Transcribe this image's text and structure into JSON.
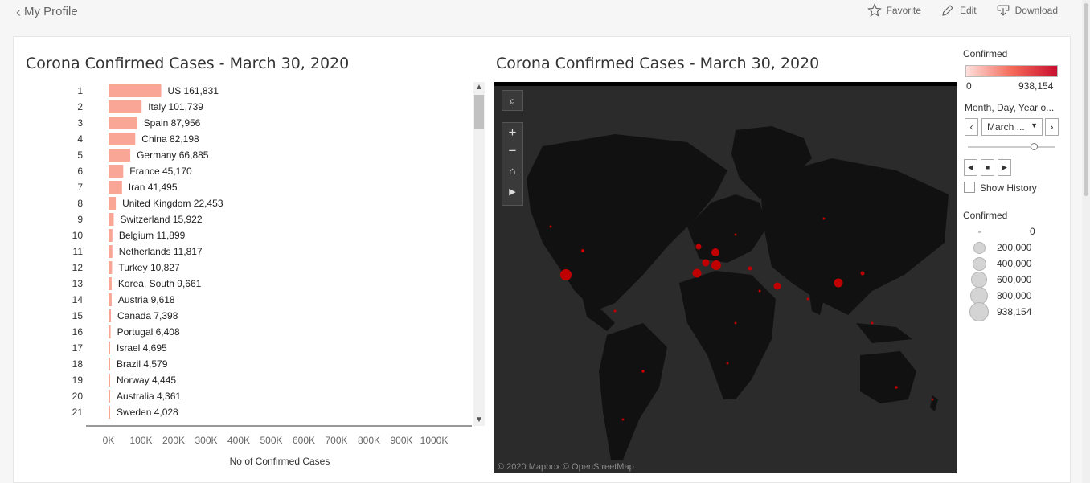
{
  "topbar": {
    "back_label": "My Profile",
    "favorite_label": "Favorite",
    "edit_label": "Edit",
    "download_label": "Download"
  },
  "left_title": "Corona Confirmed Cases - March 30, 2020",
  "map_title": "Corona Confirmed Cases - March 30, 2020",
  "chart_data": {
    "type": "bar",
    "orientation": "horizontal",
    "xlabel": "No of Confirmed Cases",
    "xlim": [
      0,
      1000000
    ],
    "xticks": [
      "0K",
      "100K",
      "200K",
      "300K",
      "400K",
      "500K",
      "600K",
      "700K",
      "800K",
      "900K",
      "1000K"
    ],
    "bar_color": "#f9a697",
    "rows": [
      {
        "rank": "1",
        "country": "US",
        "value": 161831,
        "value_label": "161,831"
      },
      {
        "rank": "2",
        "country": "Italy",
        "value": 101739,
        "value_label": "101,739"
      },
      {
        "rank": "3",
        "country": "Spain",
        "value": 87956,
        "value_label": "87,956"
      },
      {
        "rank": "4",
        "country": "China",
        "value": 82198,
        "value_label": "82,198"
      },
      {
        "rank": "5",
        "country": "Germany",
        "value": 66885,
        "value_label": "66,885"
      },
      {
        "rank": "6",
        "country": "France",
        "value": 45170,
        "value_label": "45,170"
      },
      {
        "rank": "7",
        "country": "Iran",
        "value": 41495,
        "value_label": "41,495"
      },
      {
        "rank": "8",
        "country": "United Kingdom",
        "value": 22453,
        "value_label": "22,453"
      },
      {
        "rank": "9",
        "country": "Switzerland",
        "value": 15922,
        "value_label": "15,922"
      },
      {
        "rank": "10",
        "country": "Belgium",
        "value": 11899,
        "value_label": "11,899"
      },
      {
        "rank": "11",
        "country": "Netherlands",
        "value": 11817,
        "value_label": "11,817"
      },
      {
        "rank": "12",
        "country": "Turkey",
        "value": 10827,
        "value_label": "10,827"
      },
      {
        "rank": "13",
        "country": "Korea, South",
        "value": 9661,
        "value_label": "9,661"
      },
      {
        "rank": "14",
        "country": "Austria",
        "value": 9618,
        "value_label": "9,618"
      },
      {
        "rank": "15",
        "country": "Canada",
        "value": 7398,
        "value_label": "7,398"
      },
      {
        "rank": "16",
        "country": "Portugal",
        "value": 6408,
        "value_label": "6,408"
      },
      {
        "rank": "17",
        "country": "Israel",
        "value": 4695,
        "value_label": "4,695"
      },
      {
        "rank": "18",
        "country": "Brazil",
        "value": 4579,
        "value_label": "4,579"
      },
      {
        "rank": "19",
        "country": "Norway",
        "value": 4445,
        "value_label": "4,445"
      },
      {
        "rank": "20",
        "country": "Australia",
        "value": 4361,
        "value_label": "4,361"
      },
      {
        "rank": "21",
        "country": "Sweden",
        "value": 4028,
        "value_label": "4,028"
      }
    ]
  },
  "map": {
    "credit": "© 2020 Mapbox  © OpenStreetMap",
    "background": "#2b2b2b",
    "land_color": "#111111",
    "marker_color": "#c00000"
  },
  "legend": {
    "color_title": "Confirmed",
    "color_min": "0",
    "color_max": "938,154",
    "date_filter_title": "Month, Day, Year o...",
    "date_filter_value": "March ...",
    "show_history_label": "Show History",
    "size_title": "Confirmed",
    "size_labels": [
      "0",
      "200,000",
      "400,000",
      "600,000",
      "800,000",
      "938,154"
    ]
  }
}
